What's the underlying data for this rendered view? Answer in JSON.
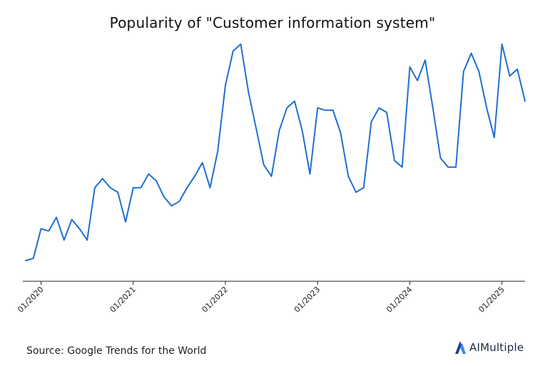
{
  "chart_data": {
    "type": "line",
    "title": "Popularity of \"Customer information system\"",
    "xlabel": "",
    "ylabel": "",
    "x_tick_labels": [
      "01/2020",
      "01/2021",
      "01/2022",
      "01/2023",
      "01/2024",
      "01/2025"
    ],
    "start": "2019-11",
    "ylim": [
      0,
      100
    ],
    "grid": false,
    "legend": "none",
    "series_color": "#1f6fd1",
    "values": [
      5,
      6,
      19,
      18,
      24,
      14,
      23,
      19,
      14,
      37,
      41,
      37,
      35,
      22,
      37,
      37,
      43,
      40,
      33,
      29,
      31,
      37,
      42,
      48,
      37,
      53,
      82,
      97,
      100,
      79,
      63,
      47,
      42,
      62,
      72,
      75,
      62,
      43,
      72,
      71,
      71,
      61,
      42,
      35,
      37,
      66,
      72,
      70,
      49,
      46,
      90,
      84,
      93,
      72,
      50,
      46,
      46,
      88,
      96,
      88,
      72,
      59,
      100,
      86,
      89,
      75
    ]
  },
  "source": {
    "text": "Source: Google Trends for the World"
  },
  "brand": {
    "name_a": "AI",
    "name_b": "Multiple",
    "logo_icon": "aimultiple-logo-icon",
    "logo_color_dark": "#1a3a8a",
    "logo_color_light": "#3b82f6"
  }
}
